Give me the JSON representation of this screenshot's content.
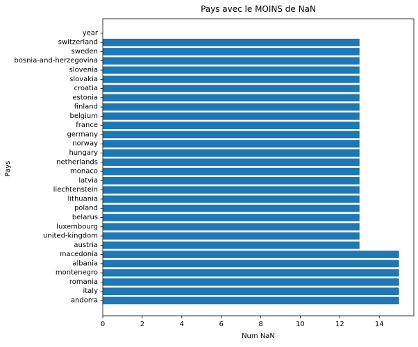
{
  "chart_data": {
    "type": "bar",
    "orientation": "horizontal",
    "title": "Pays avec le MOINS de NaN",
    "xlabel": "Num NaN",
    "ylabel": "Pays",
    "xlim": [
      0,
      15.75
    ],
    "xticks": [
      "0",
      "2",
      "4",
      "6",
      "8",
      "10",
      "12",
      "14"
    ],
    "categories": [
      "andorra",
      "italy",
      "romania",
      "montenegro",
      "albania",
      "macedonia",
      "austria",
      "united-kingdom",
      "luxembourg",
      "belarus",
      "poland",
      "lithuania",
      "liechtenstein",
      "latvia",
      "monaco",
      "netherlands",
      "hungary",
      "norway",
      "germany",
      "france",
      "belgium",
      "finland",
      "estonia",
      "croatia",
      "slovakia",
      "slovenia",
      "bosnia-and-herzegovina",
      "sweden",
      "switzerland",
      "year"
    ],
    "values": [
      15,
      15,
      15,
      15,
      15,
      15,
      13,
      13,
      13,
      13,
      13,
      13,
      13,
      13,
      13,
      13,
      13,
      13,
      13,
      13,
      13,
      13,
      13,
      13,
      13,
      13,
      13,
      13,
      13,
      0
    ],
    "bar_color": "#1f77b4",
    "grid": false,
    "legend": "none"
  }
}
